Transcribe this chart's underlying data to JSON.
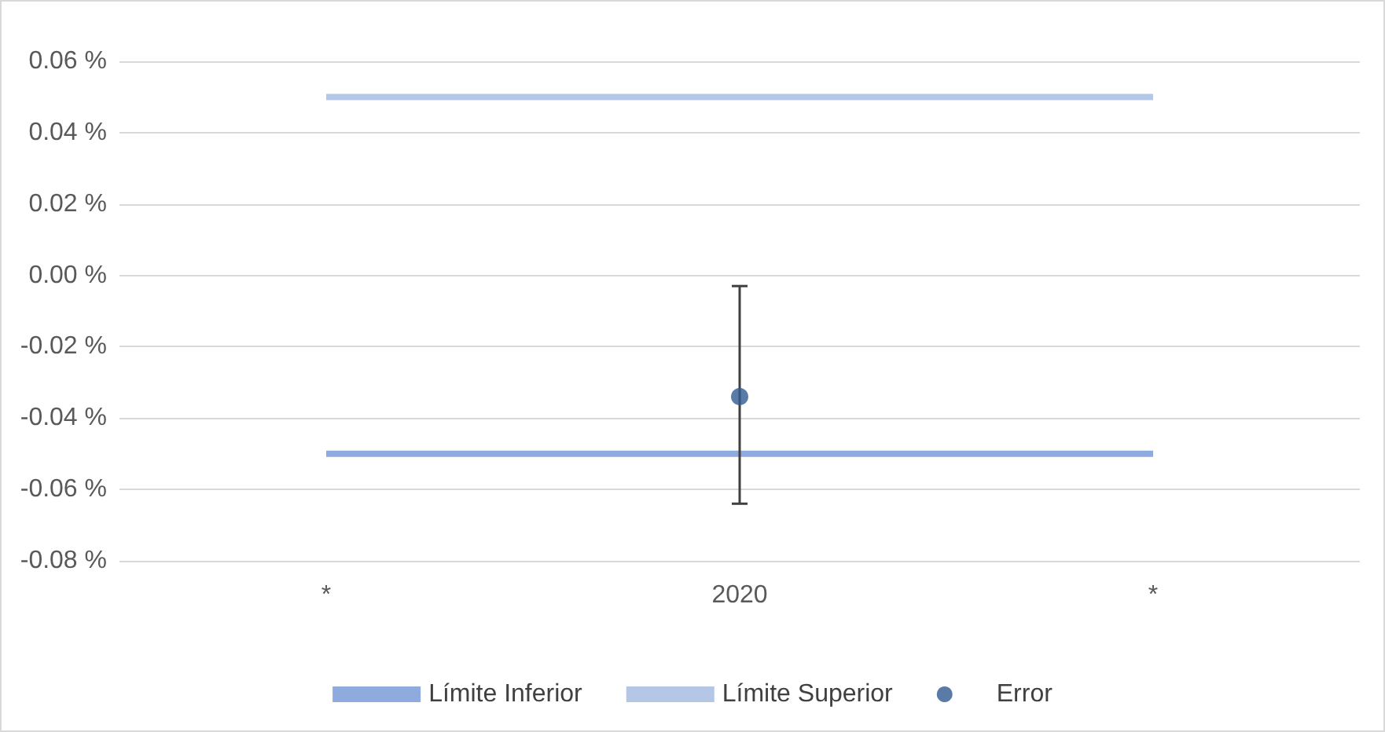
{
  "chart_data": {
    "type": "line",
    "categories": [
      "*",
      "2020",
      "*"
    ],
    "series": [
      {
        "name": "Límite Inferior",
        "color": "#8faadc",
        "values": [
          -0.05,
          -0.05,
          -0.05
        ],
        "marker": "none",
        "line_style": "solid"
      },
      {
        "name": "Límite Superior",
        "color": "#b4c7e7",
        "values": [
          0.05,
          0.05,
          0.05
        ],
        "marker": "none",
        "line_style": "solid"
      },
      {
        "name": "Error",
        "type": "scatter",
        "color": "#2f5a8e",
        "values": [
          null,
          -0.034,
          null
        ],
        "marker": "circle",
        "errors": [
          null,
          [
            -0.064,
            -0.003
          ],
          null
        ]
      }
    ],
    "ylim": [
      -0.08,
      0.06
    ],
    "yticks": [
      {
        "value": -0.08,
        "label": "-0.08 %"
      },
      {
        "value": -0.06,
        "label": "-0.06 %"
      },
      {
        "value": -0.04,
        "label": "-0.04 %"
      },
      {
        "value": -0.02,
        "label": "-0.02 %"
      },
      {
        "value": 0,
        "label": "0.00 %"
      },
      {
        "value": 0.02,
        "label": "0.02 %"
      },
      {
        "value": 0.04,
        "label": "0.04 %"
      },
      {
        "value": 0.06,
        "label": "0.06 %"
      }
    ],
    "grid": "y",
    "legend": "bottom"
  }
}
